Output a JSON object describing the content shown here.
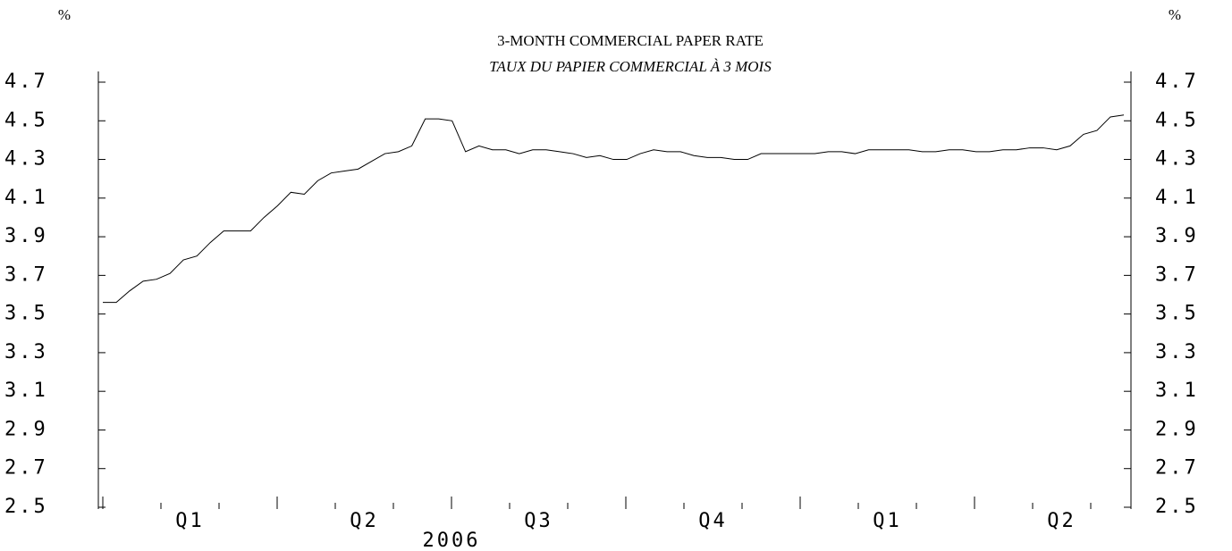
{
  "chart_data": {
    "type": "line",
    "title": "3-MONTH COMMERCIAL PAPER RATE",
    "subtitle": "TAUX DU PAPIER COMMERCIAL À 3 MOIS",
    "y_unit": "%",
    "x_labels": [
      "Q1",
      "Q2",
      "Q3",
      "Q4",
      "Q1",
      "Q2"
    ],
    "x_year": "2006",
    "series": [
      {
        "color": "#000000",
        "values": [
          3.56,
          3.56,
          3.62,
          3.67,
          3.68,
          3.71,
          3.78,
          3.8,
          3.87,
          3.93,
          3.93,
          3.93,
          4.0,
          4.06,
          4.13,
          4.12,
          4.19,
          4.23,
          4.24,
          4.25,
          4.29,
          4.33,
          4.34,
          4.37,
          4.51,
          4.51,
          4.5,
          4.34,
          4.37,
          4.35,
          4.35,
          4.33,
          4.35,
          4.35,
          4.34,
          4.33,
          4.31,
          4.32,
          4.3,
          4.3,
          4.33,
          4.35,
          4.34,
          4.34,
          4.32,
          4.31,
          4.31,
          4.3,
          4.3,
          4.33,
          4.33,
          4.33,
          4.33,
          4.33,
          4.34,
          4.34,
          4.33,
          4.35,
          4.35,
          4.35,
          4.35,
          4.34,
          4.34,
          4.35,
          4.35,
          4.34,
          4.34,
          4.35,
          4.35,
          4.36,
          4.36,
          4.35,
          4.37,
          4.43,
          4.45,
          4.52,
          4.53
        ]
      }
    ],
    "ylim": [
      2.5,
      4.7
    ],
    "yticks": [
      2.5,
      2.7,
      2.9,
      3.1,
      3.3,
      3.5,
      3.7,
      3.9,
      4.1,
      4.3,
      4.5,
      4.7
    ],
    "y2lim": [
      2.5,
      4.7
    ],
    "y2ticks": [
      2.5,
      2.7,
      2.9,
      3.1,
      3.3,
      3.5,
      3.7,
      3.9,
      4.1,
      4.3,
      4.5,
      4.7
    ]
  }
}
